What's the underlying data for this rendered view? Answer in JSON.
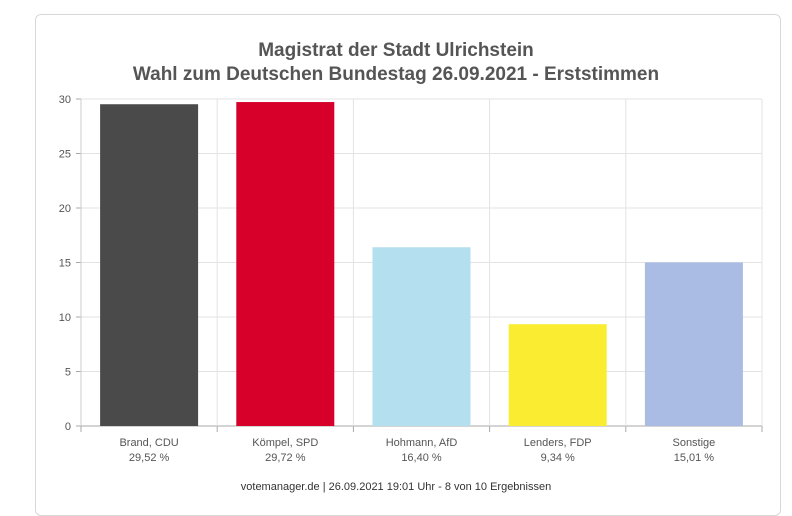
{
  "chart_data": {
    "type": "bar",
    "title": "Magistrat der Stadt Ulrichstein",
    "subtitle": "Wahl zum Deutschen Bundestag 26.09.2021  - Erststimmen",
    "categories": [
      "Brand, CDU",
      "Kömpel, SPD",
      "Hohmann, AfD",
      "Lenders, FDP",
      "Sonstige"
    ],
    "value_labels": [
      "29,52 %",
      "29,72 %",
      "16,40 %",
      "9,34 %",
      "15,01 %"
    ],
    "values": [
      29.52,
      29.72,
      16.4,
      9.34,
      15.01
    ],
    "colors": [
      "#4a4a4a",
      "#d6002a",
      "#b3dfee",
      "#f9ec31",
      "#aabce3"
    ],
    "yticks": [
      0,
      5,
      10,
      15,
      20,
      25,
      30
    ],
    "ylim": [
      0,
      30
    ],
    "grid": true,
    "legend": "none"
  },
  "footer": "votemanager.de | 26.09.2021 19:01 Uhr - 8 von 10 Ergebnissen"
}
